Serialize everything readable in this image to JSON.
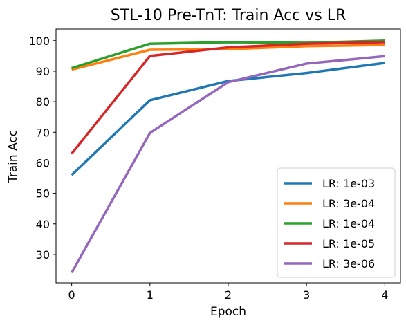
{
  "chart_data": {
    "type": "line",
    "title": "STL-10 Pre-TnT: Train Acc vs LR",
    "xlabel": "Epoch",
    "ylabel": "Train Acc",
    "x": [
      0,
      1,
      2,
      3,
      4
    ],
    "xlim": [
      -0.2,
      4.2
    ],
    "ylim": [
      20.7,
      103.8
    ],
    "xticks": [
      0,
      1,
      2,
      3,
      4
    ],
    "yticks": [
      30,
      40,
      50,
      60,
      70,
      80,
      90,
      100
    ],
    "grid": false,
    "legend_position": "lower-right",
    "series": [
      {
        "name": "LR: 1e-03",
        "color": "#1f77b4",
        "values": [
          56.0,
          80.5,
          86.8,
          89.4,
          92.7
        ]
      },
      {
        "name": "LR: 3e-04",
        "color": "#ff7f0e",
        "values": [
          90.5,
          97.0,
          97.2,
          98.2,
          98.6
        ]
      },
      {
        "name": "LR: 1e-04",
        "color": "#2ca02c",
        "values": [
          91.0,
          99.0,
          99.5,
          99.3,
          100.0
        ]
      },
      {
        "name": "LR: 1e-05",
        "color": "#d62728",
        "values": [
          63.0,
          95.0,
          97.8,
          99.0,
          99.5
        ]
      },
      {
        "name": "LR: 3e-06",
        "color": "#9467bd",
        "values": [
          24.0,
          69.8,
          86.4,
          92.5,
          94.9
        ]
      }
    ]
  }
}
